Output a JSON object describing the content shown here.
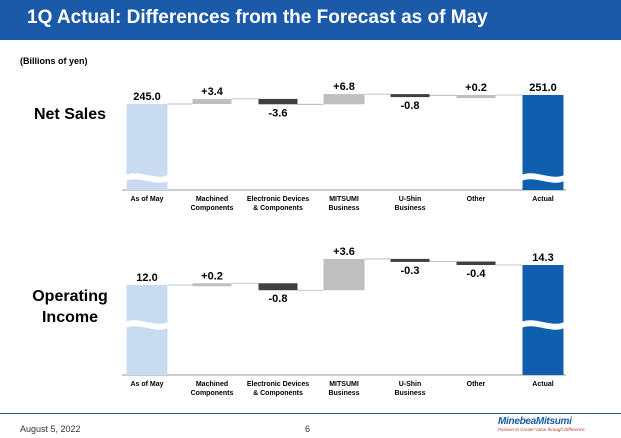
{
  "header": {
    "title": "1Q Actual: Differences from the Forecast as of May"
  },
  "unit_label": "(Billions of yen)",
  "colors": {
    "header": "#1a5aa8",
    "start": "#c9dbf1",
    "end": "#0f5fae",
    "up": "#bfbfbf",
    "down": "#404040"
  },
  "chart_data": [
    {
      "type": "bar",
      "subtype": "waterfall",
      "title": "Net Sales",
      "categories": [
        "As of May",
        "Machined Components",
        "Electronic Devices & Components",
        "MITSUMI Business",
        "U-Shin Business",
        "Other",
        "Actual"
      ],
      "tick_labels": [
        [
          "As of May"
        ],
        [
          "Machined",
          "Components"
        ],
        [
          "Electronic Devices",
          "& Components"
        ],
        [
          "MITSUMI",
          "Business"
        ],
        [
          "U-Shin",
          "Business"
        ],
        [
          "Other"
        ],
        [
          "Actual"
        ]
      ],
      "start": 245.0,
      "deltas": [
        3.4,
        -3.6,
        6.8,
        -0.8,
        0.2
      ],
      "end": 251.0,
      "value_labels": [
        "245.0",
        "+3.4",
        "-3.6",
        "+6.8",
        "-0.8",
        "+0.2",
        "251.0"
      ],
      "axis_break": true,
      "xlabel": "",
      "ylabel": ""
    },
    {
      "type": "bar",
      "subtype": "waterfall",
      "title": "Operating Income",
      "title_lines": [
        "Operating",
        "Income"
      ],
      "categories": [
        "As of May",
        "Machined Components",
        "Electronic Devices & Components",
        "MITSUMI Business",
        "U-Shin Business",
        "Other",
        "Actual"
      ],
      "tick_labels": [
        [
          "As of May"
        ],
        [
          "Machined",
          "Components"
        ],
        [
          "Electronic Devices",
          "& Components"
        ],
        [
          "MITSUMI",
          "Business"
        ],
        [
          "U-Shin",
          "Business"
        ],
        [
          "Other"
        ],
        [
          "Actual"
        ]
      ],
      "start": 12.0,
      "deltas": [
        0.2,
        -0.8,
        3.6,
        -0.3,
        -0.4
      ],
      "end": 14.3,
      "value_labels": [
        "12.0",
        "+0.2",
        "-0.8",
        "+3.6",
        "-0.3",
        "-0.4",
        "14.3"
      ],
      "axis_break": true,
      "xlabel": "",
      "ylabel": ""
    }
  ],
  "footer": {
    "date": "August 5, 2022",
    "page": "6"
  },
  "logo": {
    "name": "MinebeaMitsumi",
    "tagline": "Passion to Create Value through Difference"
  }
}
